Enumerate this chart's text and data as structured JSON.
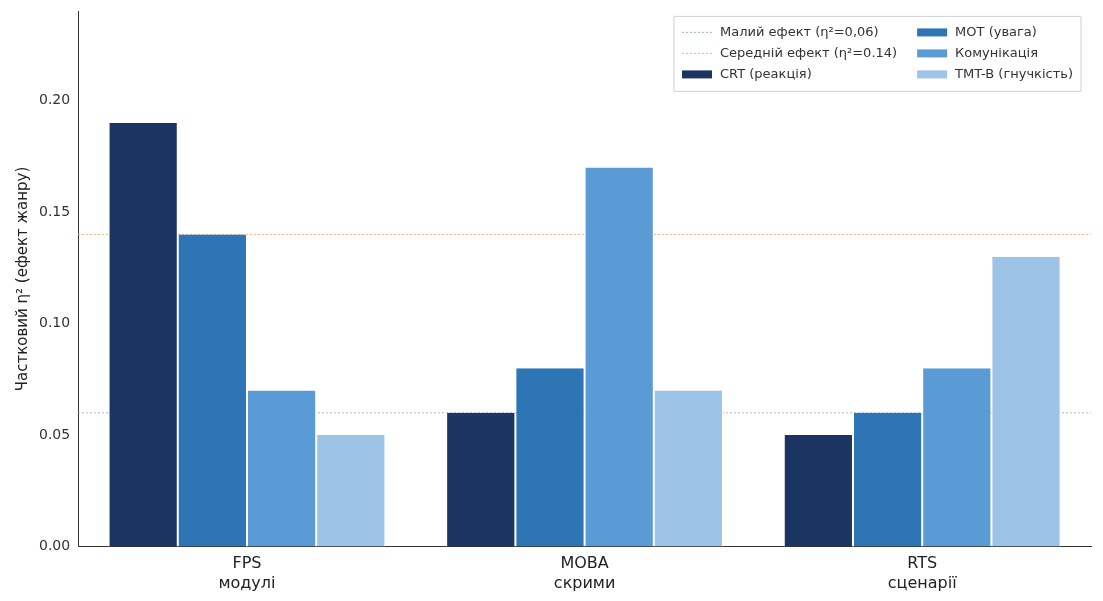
{
  "chart_data": {
    "type": "bar",
    "ylabel": "Частковий η² (ефект жанру)",
    "categories": [
      "FPS\nмодулі",
      "MOBA\nскрими",
      "RTS\nсценарії"
    ],
    "series": [
      {
        "name": "CRT (реакція)",
        "color": "#1c3461",
        "values": [
          0.19,
          0.06,
          0.05
        ]
      },
      {
        "name": "MOT (увага)",
        "color": "#2e75b6",
        "values": [
          0.14,
          0.08,
          0.06
        ]
      },
      {
        "name": "Комунікація",
        "color": "#5b9bd5",
        "values": [
          0.07,
          0.17,
          0.08
        ]
      },
      {
        "name": "TMT-B (гнучкість)",
        "color": "#9dc3e6",
        "values": [
          0.05,
          0.07,
          0.13
        ]
      }
    ],
    "ylim": [
      0,
      0.24
    ],
    "yticks": [
      {
        "value": 0,
        "label": "0.00"
      },
      {
        "value": 0.05,
        "label": "0.05"
      },
      {
        "value": 0.1,
        "label": "0.10"
      },
      {
        "value": 0.15,
        "label": "0.15"
      },
      {
        "value": 0.2,
        "label": "0.20"
      }
    ],
    "ref_lines": [
      {
        "axis": "y",
        "value": 0.06,
        "label": "Малий ефект (η²=0,06)",
        "color": "#9fb4d8",
        "line_style": "dotted"
      },
      {
        "axis": "y",
        "value": 0.14,
        "label": "Середній ефект (η²=0.14)",
        "color": "#f0b27a",
        "line_style": "dotted"
      }
    ],
    "grid": false,
    "legend": "top right"
  }
}
